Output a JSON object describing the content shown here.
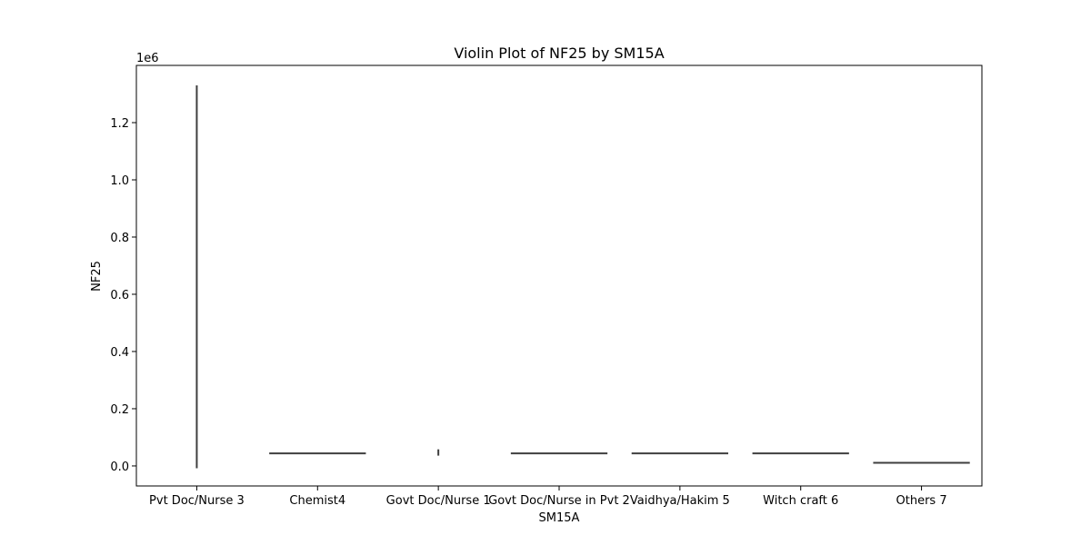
{
  "chart_data": {
    "type": "violin",
    "title": "Violin Plot of NF25 by SM15A",
    "xlabel": "SM15A",
    "ylabel": "NF25",
    "y_exponent_label": "1e6",
    "y_scale_factor": 1000000,
    "ylim": [
      -70000,
      1400000
    ],
    "yticks": [
      0.0,
      0.2,
      0.4,
      0.6,
      0.8,
      1.0,
      1.2
    ],
    "ytick_labels": [
      "0.0",
      "0.2",
      "0.4",
      "0.6",
      "0.8",
      "1.0",
      "1.2"
    ],
    "grid": false,
    "legend": false,
    "categories": [
      "Pvt Doc/Nurse 3",
      "Chemist4",
      "Govt Doc/Nurse 1",
      "Govt Doc/Nurse in Pvt 2",
      "Vaidhya/Hakim 5",
      "Witch craft 6",
      "Others 7"
    ],
    "violins": [
      {
        "category": "Pvt Doc/Nurse 3",
        "min": -8000,
        "max": 1330000,
        "relative_width": 0.01
      },
      {
        "category": "Chemist4",
        "min": 44000,
        "max": 44000,
        "relative_width": 0.8
      },
      {
        "category": "Govt Doc/Nurse 1",
        "min": 36000,
        "max": 58000,
        "relative_width": 0.01
      },
      {
        "category": "Govt Doc/Nurse in Pvt 2",
        "min": 44000,
        "max": 44000,
        "relative_width": 0.8
      },
      {
        "category": "Vaidhya/Hakim 5",
        "min": 44000,
        "max": 44000,
        "relative_width": 0.8
      },
      {
        "category": "Witch craft 6",
        "min": 44000,
        "max": 44000,
        "relative_width": 0.8
      },
      {
        "category": "Others 7",
        "min": 11000,
        "max": 11000,
        "relative_width": 0.8
      }
    ],
    "colors": {
      "violin_line": "#3f3f3f",
      "axis": "#000000"
    }
  }
}
